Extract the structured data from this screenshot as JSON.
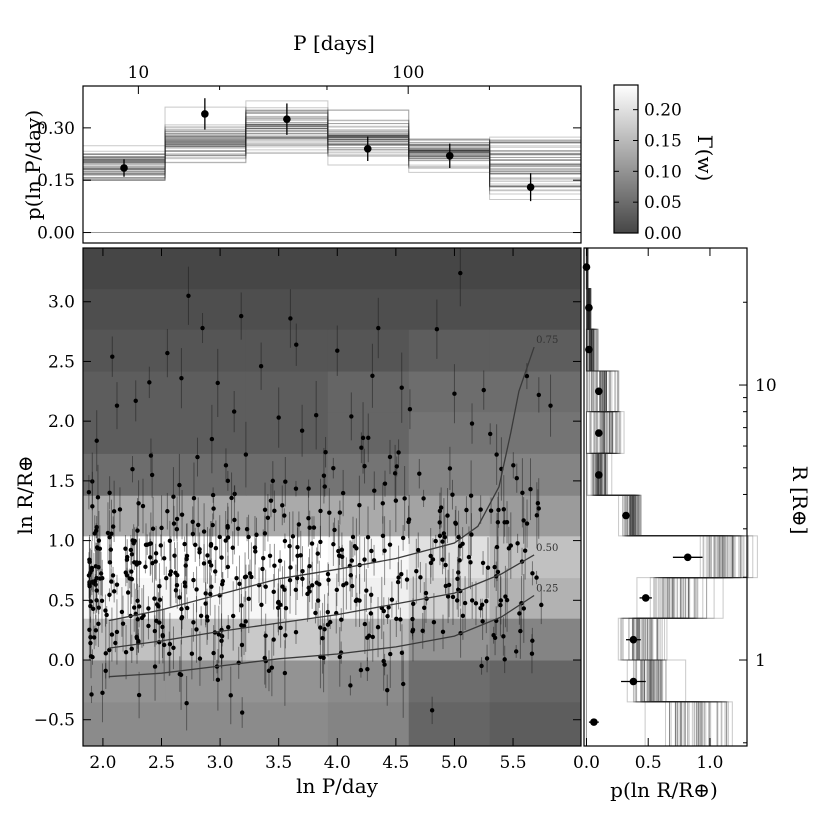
{
  "chart_data": [
    {
      "id": "main",
      "type": "heatmap",
      "xlabel": "ln P/day",
      "ylabel": "ln R/R⊕",
      "xlim": [
        1.83,
        6.08
      ],
      "ylim": [
        -0.72,
        3.45
      ],
      "x_ticks": [
        2.0,
        2.5,
        3.0,
        3.5,
        4.0,
        4.5,
        5.0,
        5.5
      ],
      "y_ticks": [
        -0.5,
        0.0,
        0.5,
        1.0,
        1.5,
        2.0,
        2.5,
        3.0
      ],
      "x_tick_labels": [
        "2.0",
        "2.5",
        "3.0",
        "3.5",
        "4.0",
        "4.5",
        "5.0",
        "5.5"
      ],
      "y_tick_labels": [
        "−0.5",
        "0.0",
        "0.5",
        "1.0",
        "1.5",
        "2.0",
        "2.5",
        "3.0"
      ],
      "x_bins": [
        1.83,
        2.53,
        3.22,
        3.92,
        4.61,
        5.3,
        6.08
      ],
      "y_bins": [
        -0.72,
        -0.35,
        0.0,
        0.35,
        0.69,
        1.04,
        1.38,
        1.73,
        2.08,
        2.42,
        2.77,
        3.11,
        3.45
      ],
      "density_rows_low_to_high": [
        [
          0.09,
          0.09,
          0.09,
          0.08,
          0.04,
          0.03
        ],
        [
          0.1,
          0.1,
          0.1,
          0.09,
          0.05,
          0.04
        ],
        [
          0.16,
          0.16,
          0.17,
          0.15,
          0.1,
          0.08
        ],
        [
          0.23,
          0.23,
          0.23,
          0.22,
          0.18,
          0.14
        ],
        [
          0.24,
          0.24,
          0.24,
          0.23,
          0.2,
          0.16
        ],
        [
          0.13,
          0.13,
          0.13,
          0.13,
          0.12,
          0.11
        ],
        [
          0.05,
          0.05,
          0.05,
          0.06,
          0.08,
          0.08
        ],
        [
          0.03,
          0.03,
          0.03,
          0.04,
          0.06,
          0.06
        ],
        [
          0.03,
          0.03,
          0.03,
          0.04,
          0.05,
          0.05
        ],
        [
          0.02,
          0.02,
          0.02,
          0.02,
          0.03,
          0.03
        ],
        [
          0.01,
          0.01,
          0.01,
          0.01,
          0.01,
          0.01
        ],
        [
          0.0,
          0.0,
          0.0,
          0.0,
          0.0,
          0.0
        ]
      ],
      "contours": [
        {
          "label": "0.75",
          "points": [
            [
              2.05,
              0.33
            ],
            [
              2.5,
              0.42
            ],
            [
              3.0,
              0.55
            ],
            [
              3.5,
              0.68
            ],
            [
              4.0,
              0.76
            ],
            [
              4.5,
              0.85
            ],
            [
              5.0,
              0.98
            ],
            [
              5.2,
              1.12
            ],
            [
              5.38,
              1.45
            ],
            [
              5.48,
              1.9
            ],
            [
              5.55,
              2.25
            ],
            [
              5.62,
              2.45
            ],
            [
              5.68,
              2.62
            ]
          ]
        },
        {
          "label": "0.50",
          "points": [
            [
              2.05,
              0.1
            ],
            [
              2.5,
              0.16
            ],
            [
              3.0,
              0.24
            ],
            [
              3.5,
              0.31
            ],
            [
              4.0,
              0.38
            ],
            [
              4.5,
              0.47
            ],
            [
              5.0,
              0.56
            ],
            [
              5.4,
              0.72
            ],
            [
              5.68,
              0.88
            ]
          ]
        },
        {
          "label": "0.25",
          "points": [
            [
              2.05,
              -0.14
            ],
            [
              2.5,
              -0.11
            ],
            [
              3.0,
              -0.05
            ],
            [
              3.5,
              0.01
            ],
            [
              4.0,
              0.05
            ],
            [
              4.5,
              0.11
            ],
            [
              5.0,
              0.2
            ],
            [
              5.4,
              0.36
            ],
            [
              5.68,
              0.54
            ]
          ]
        }
      ],
      "scatter_outliers": [
        [
          2.08,
          2.54
        ],
        [
          2.12,
          2.13
        ],
        [
          2.28,
          2.17
        ],
        [
          2.55,
          2.57
        ],
        [
          2.67,
          2.36
        ],
        [
          2.73,
          3.05
        ],
        [
          2.85,
          2.78
        ],
        [
          2.93,
          1.85
        ],
        [
          3.12,
          2.08
        ],
        [
          3.18,
          2.88
        ],
        [
          3.35,
          2.46
        ],
        [
          3.5,
          2.03
        ],
        [
          3.6,
          2.86
        ],
        [
          3.65,
          2.64
        ],
        [
          3.7,
          1.92
        ],
        [
          3.82,
          2.05
        ],
        [
          3.9,
          1.74
        ],
        [
          4.12,
          2.04
        ],
        [
          4.3,
          2.38
        ],
        [
          4.35,
          2.78
        ],
        [
          4.45,
          1.7
        ],
        [
          4.62,
          2.1
        ],
        [
          4.7,
          1.56
        ],
        [
          4.85,
          2.77
        ],
        [
          5.0,
          2.23
        ],
        [
          5.05,
          3.24
        ],
        [
          5.15,
          1.98
        ],
        [
          5.25,
          2.26
        ],
        [
          5.36,
          1.72
        ],
        [
          5.58,
          1.4
        ],
        [
          5.82,
          2.13
        ],
        [
          5.72,
          2.22
        ],
        [
          4.22,
          1.86
        ],
        [
          3.05,
          1.63
        ],
        [
          2.42,
          1.55
        ],
        [
          3.45,
          1.5
        ],
        [
          4.0,
          2.59
        ],
        [
          2.98,
          2.32
        ],
        [
          3.22,
          1.72
        ],
        [
          4.55,
          2.28
        ]
      ],
      "scatter_cluster": {
        "count": 520,
        "x_range": [
          1.88,
          5.75
        ],
        "center_ln_R": 0.65,
        "spread_ln_R": 0.42,
        "seed": 7
      }
    },
    {
      "id": "top",
      "type": "histogram",
      "xlabel": "P [days]",
      "ylabel": "p(ln P/day)",
      "top_ticks": [
        10,
        100
      ],
      "top_tick_labels": [
        "10",
        "100"
      ],
      "y_ticks": [
        0.0,
        0.15,
        0.3
      ],
      "y_tick_labels": [
        "0.00",
        "0.15",
        "0.30"
      ],
      "ylim": [
        -0.03,
        0.42
      ],
      "bins": [
        1.83,
        2.53,
        3.22,
        3.92,
        4.61,
        5.3,
        6.08
      ],
      "median_values": [
        0.19,
        0.26,
        0.3,
        0.27,
        0.23,
        0.19
      ],
      "sample_spread": [
        0.025,
        0.03,
        0.035,
        0.03,
        0.025,
        0.04
      ],
      "points": [
        {
          "x": 2.18,
          "y": 0.185,
          "err": 0.025
        },
        {
          "x": 2.87,
          "y": 0.34,
          "err": 0.045
        },
        {
          "x": 3.57,
          "y": 0.325,
          "err": 0.045
        },
        {
          "x": 4.26,
          "y": 0.24,
          "err": 0.035
        },
        {
          "x": 4.96,
          "y": 0.22,
          "err": 0.035
        },
        {
          "x": 5.65,
          "y": 0.13,
          "err": 0.04
        }
      ]
    },
    {
      "id": "right",
      "type": "histogram",
      "xlabel": "p(ln R/R⊕)",
      "ylabel": "R [R⊕]",
      "x_ticks": [
        0.0,
        0.5,
        1.0
      ],
      "x_tick_labels": [
        "0.0",
        "0.5",
        "1.0"
      ],
      "xlim": [
        -0.02,
        1.3
      ],
      "right_ticks": [
        1,
        10
      ],
      "right_tick_labels": [
        "1",
        "10"
      ],
      "bins": [
        -0.72,
        -0.35,
        0.0,
        0.35,
        0.69,
        1.04,
        1.38,
        1.73,
        2.08,
        2.42,
        2.77,
        3.11,
        3.45
      ],
      "median_values": [
        0.88,
        0.53,
        0.44,
        0.72,
        1.1,
        0.38,
        0.1,
        0.13,
        0.13,
        0.04,
        0.015,
        0.005
      ],
      "sample_spread": [
        0.15,
        0.08,
        0.08,
        0.12,
        0.1,
        0.04,
        0.04,
        0.07,
        0.07,
        0.03,
        0.01,
        0.005
      ],
      "points": [
        {
          "x": 0.06,
          "y": -0.52,
          "err": 0.04
        },
        {
          "x": 0.38,
          "y": -0.18,
          "err": 0.1
        },
        {
          "x": 0.38,
          "y": 0.17,
          "err": 0.06
        },
        {
          "x": 0.48,
          "y": 0.52,
          "err": 0.05
        },
        {
          "x": 0.82,
          "y": 0.86,
          "err": 0.12
        },
        {
          "x": 0.32,
          "y": 1.21,
          "err": 0.03
        },
        {
          "x": 0.1,
          "y": 1.55,
          "err": 0.01
        },
        {
          "x": 0.1,
          "y": 1.9,
          "err": 0.02
        },
        {
          "x": 0.1,
          "y": 2.25,
          "err": 0.02
        },
        {
          "x": 0.02,
          "y": 2.6,
          "err": 0.01
        },
        {
          "x": 0.02,
          "y": 2.95,
          "err": 0.005
        },
        {
          "x": 0.0,
          "y": 3.29,
          "err": 0.002
        }
      ]
    },
    {
      "id": "colorbar",
      "type": "colorbar",
      "label": "Γ(w)",
      "range": [
        0.0,
        0.24
      ],
      "ticks": [
        0.0,
        0.05,
        0.1,
        0.15,
        0.2
      ],
      "tick_labels": [
        "0.00",
        "0.05",
        "0.10",
        "0.15",
        "0.20"
      ]
    }
  ]
}
